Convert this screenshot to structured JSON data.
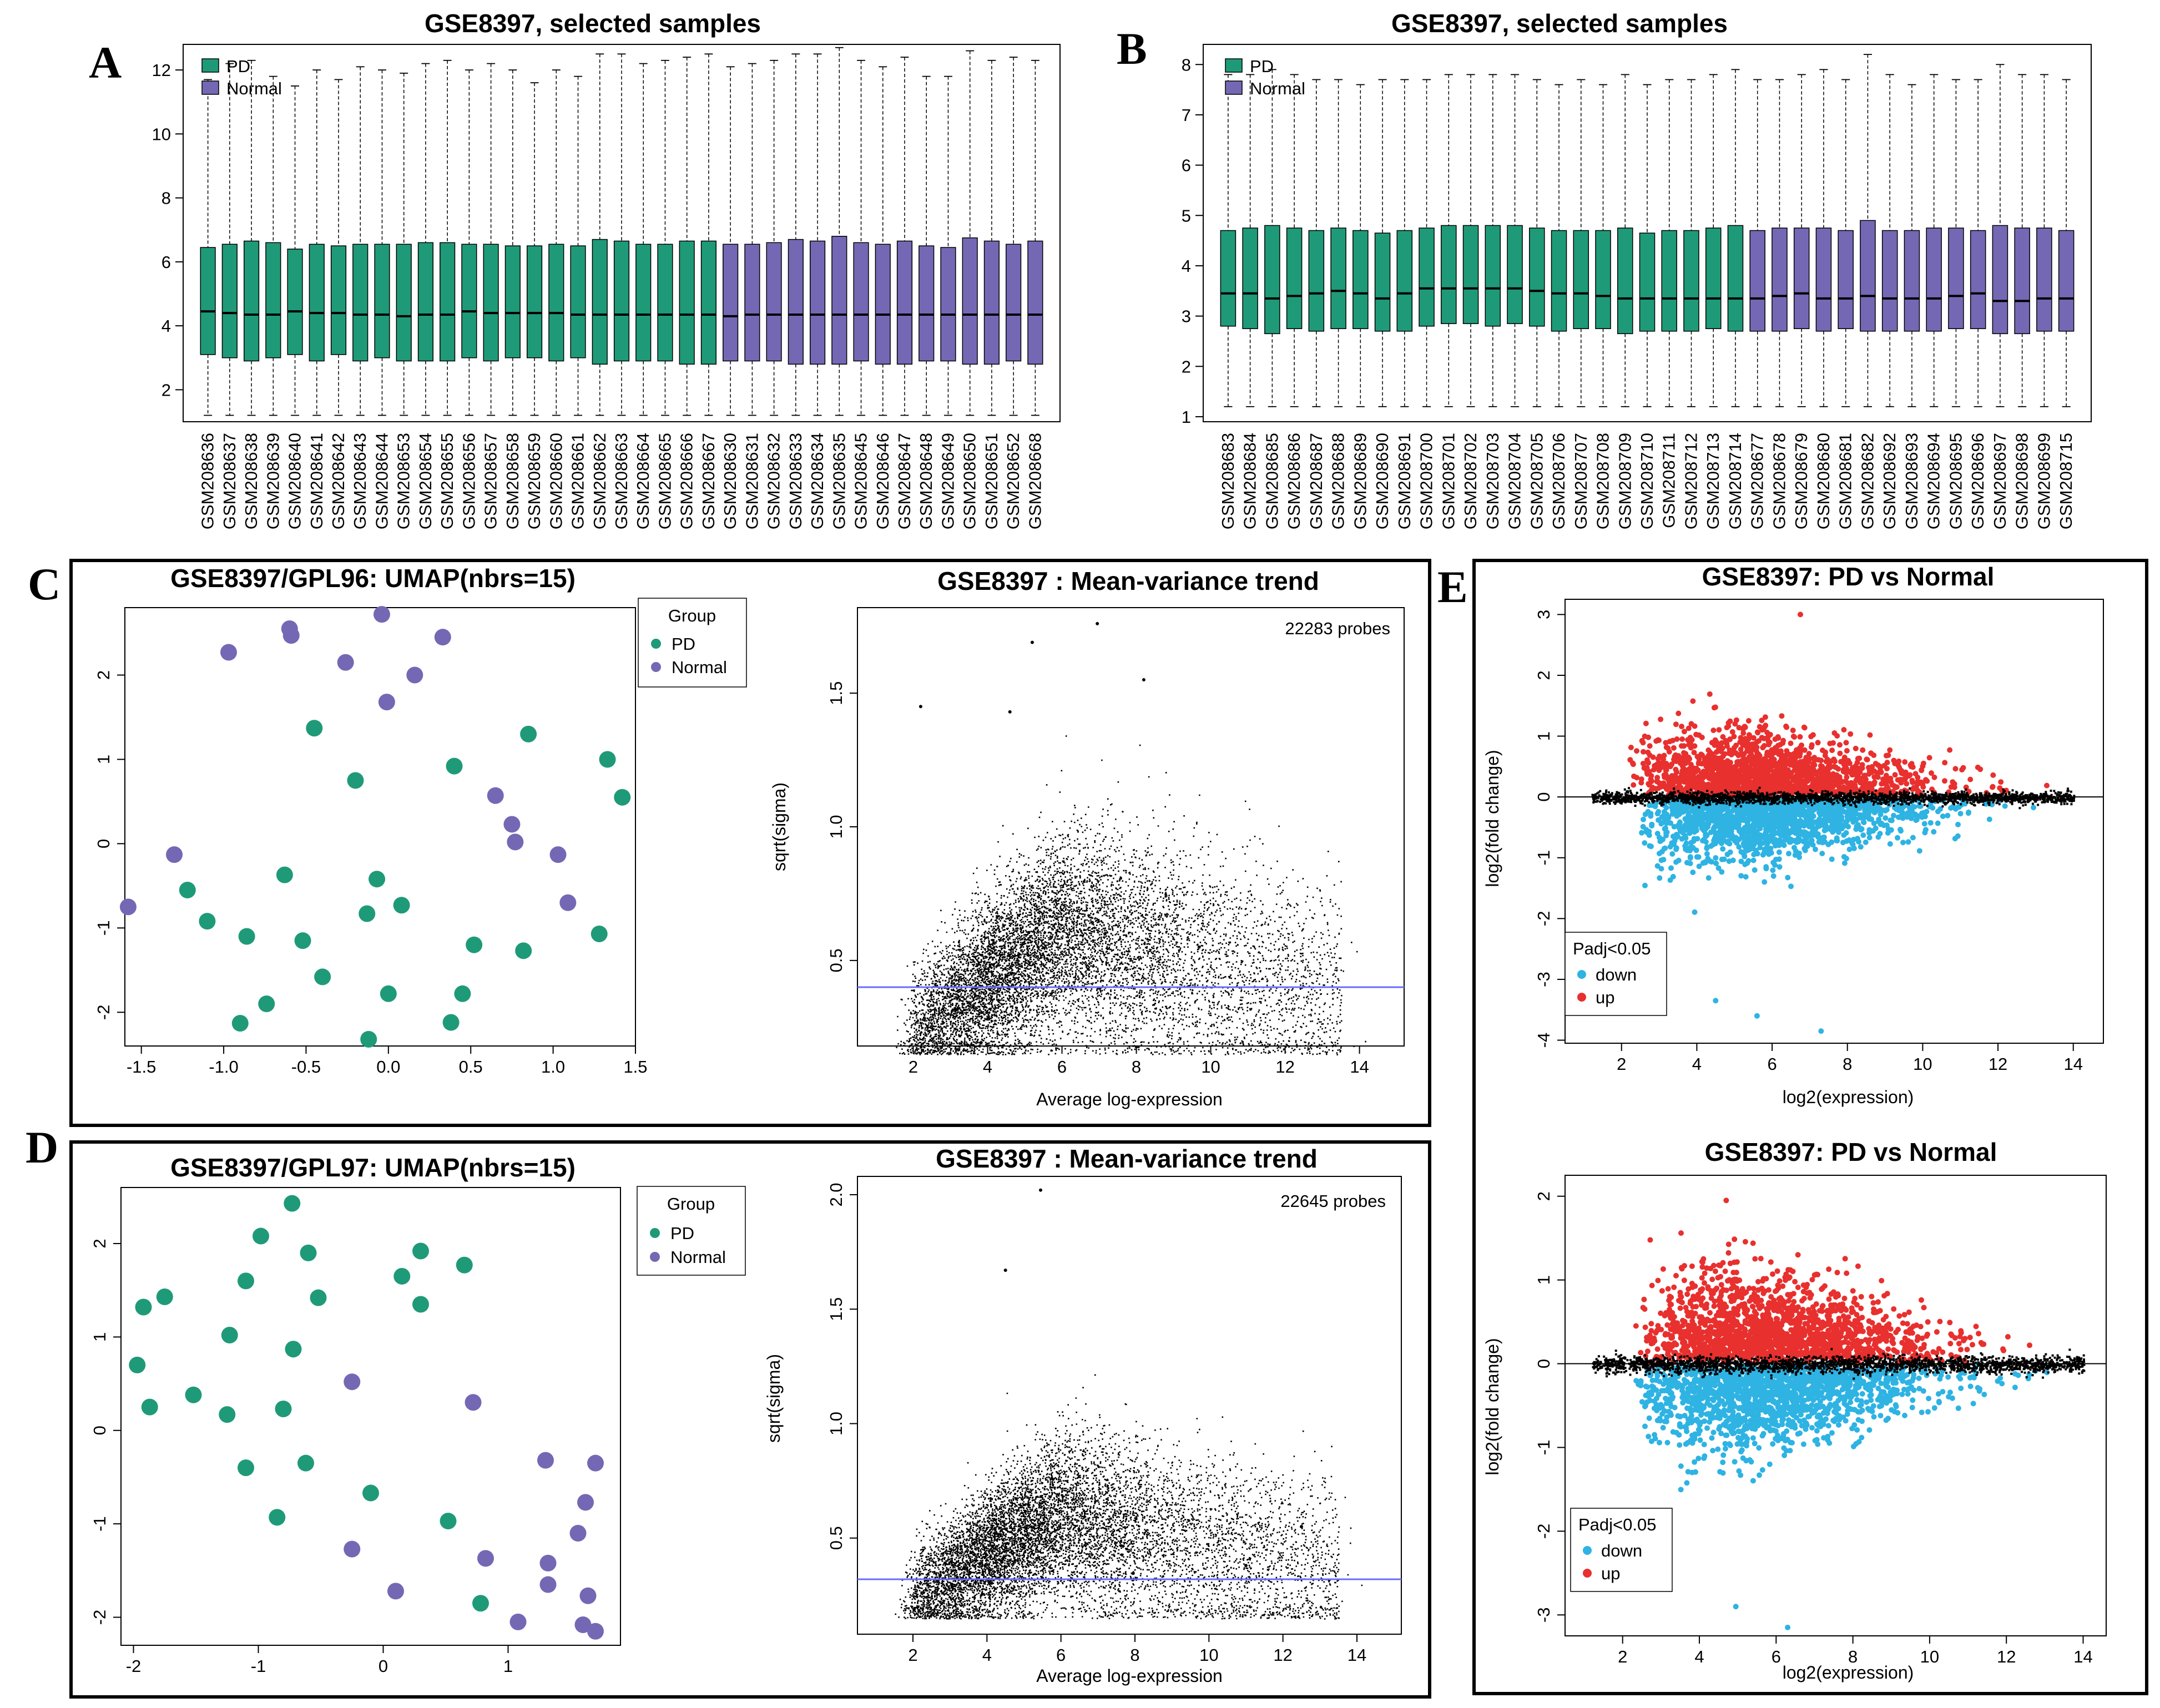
{
  "colors": {
    "pd": "#1f9a78",
    "normal": "#7468b5",
    "up": "#e8302e",
    "down": "#2eb3e3",
    "trend": "#6b6bff"
  },
  "panel_letters": [
    "A",
    "B",
    "C",
    "D",
    "E"
  ],
  "chart_data": [
    {
      "id": "A",
      "type": "box",
      "title": "GSE8397, selected samples",
      "legend": [
        "PD",
        "Normal"
      ],
      "ylim": [
        1,
        12.8
      ],
      "yticks": [
        2,
        4,
        6,
        8,
        10,
        12
      ],
      "samples": [
        "GSM208636",
        "GSM208637",
        "GSM208638",
        "GSM208639",
        "GSM208640",
        "GSM208641",
        "GSM208642",
        "GSM208643",
        "GSM208644",
        "GSM208653",
        "GSM208654",
        "GSM208655",
        "GSM208656",
        "GSM208657",
        "GSM208658",
        "GSM208659",
        "GSM208660",
        "GSM208661",
        "GSM208662",
        "GSM208663",
        "GSM208664",
        "GSM208665",
        "GSM208666",
        "GSM208667",
        "GSM208630",
        "GSM208631",
        "GSM208632",
        "GSM208633",
        "GSM208634",
        "GSM208635",
        "GSM208645",
        "GSM208646",
        "GSM208647",
        "GSM208648",
        "GSM208649",
        "GSM208650",
        "GSM208651",
        "GSM208652",
        "GSM208668"
      ],
      "groups": [
        "PD",
        "PD",
        "PD",
        "PD",
        "PD",
        "PD",
        "PD",
        "PD",
        "PD",
        "PD",
        "PD",
        "PD",
        "PD",
        "PD",
        "PD",
        "PD",
        "PD",
        "PD",
        "PD",
        "PD",
        "PD",
        "PD",
        "PD",
        "PD",
        "Normal",
        "Normal",
        "Normal",
        "Normal",
        "Normal",
        "Normal",
        "Normal",
        "Normal",
        "Normal",
        "Normal",
        "Normal",
        "Normal",
        "Normal",
        "Normal",
        "Normal"
      ],
      "q1": [
        3.1,
        3.0,
        2.9,
        3.0,
        3.1,
        2.9,
        3.1,
        2.9,
        3.0,
        2.9,
        2.9,
        2.9,
        3.0,
        2.9,
        3.0,
        3.0,
        2.9,
        3.0,
        2.8,
        2.9,
        2.9,
        2.9,
        2.8,
        2.8,
        2.9,
        2.9,
        2.9,
        2.8,
        2.8,
        2.8,
        2.9,
        2.8,
        2.8,
        2.9,
        2.9,
        2.8,
        2.8,
        2.9,
        2.8
      ],
      "median": [
        4.45,
        4.4,
        4.35,
        4.35,
        4.45,
        4.4,
        4.4,
        4.35,
        4.35,
        4.3,
        4.35,
        4.35,
        4.45,
        4.4,
        4.4,
        4.4,
        4.4,
        4.35,
        4.35,
        4.35,
        4.35,
        4.35,
        4.35,
        4.35,
        4.3,
        4.35,
        4.35,
        4.35,
        4.35,
        4.35,
        4.35,
        4.35,
        4.35,
        4.35,
        4.35,
        4.35,
        4.35,
        4.35,
        4.35
      ],
      "q3": [
        6.45,
        6.55,
        6.65,
        6.6,
        6.4,
        6.55,
        6.5,
        6.55,
        6.55,
        6.55,
        6.6,
        6.6,
        6.55,
        6.55,
        6.5,
        6.5,
        6.55,
        6.5,
        6.7,
        6.65,
        6.55,
        6.55,
        6.65,
        6.65,
        6.55,
        6.55,
        6.6,
        6.7,
        6.65,
        6.8,
        6.6,
        6.55,
        6.65,
        6.5,
        6.45,
        6.75,
        6.65,
        6.55,
        6.65
      ],
      "lower": [
        1.2,
        1.2,
        1.2,
        1.2,
        1.2,
        1.2,
        1.2,
        1.2,
        1.2,
        1.2,
        1.2,
        1.2,
        1.2,
        1.2,
        1.2,
        1.2,
        1.2,
        1.2,
        1.2,
        1.2,
        1.2,
        1.2,
        1.2,
        1.2,
        1.2,
        1.2,
        1.2,
        1.2,
        1.2,
        1.2,
        1.2,
        1.2,
        1.2,
        1.2,
        1.2,
        1.2,
        1.2,
        1.2,
        1.2
      ],
      "upper": [
        11.7,
        12.2,
        12.3,
        11.8,
        11.5,
        12.0,
        11.7,
        12.1,
        12.0,
        11.9,
        12.2,
        12.3,
        12.0,
        12.2,
        12.0,
        11.6,
        12.0,
        11.8,
        12.5,
        12.5,
        12.2,
        12.3,
        12.4,
        12.5,
        12.1,
        12.2,
        12.3,
        12.5,
        12.5,
        12.7,
        12.3,
        12.1,
        12.4,
        11.8,
        11.8,
        12.6,
        12.3,
        12.4,
        12.3
      ]
    },
    {
      "id": "B",
      "type": "box",
      "title": "GSE8397, selected samples",
      "legend": [
        "PD",
        "Normal"
      ],
      "ylim": [
        0.9,
        8.4
      ],
      "yticks": [
        1,
        2,
        3,
        4,
        5,
        6,
        7,
        8
      ],
      "samples": [
        "GSM208683",
        "GSM208684",
        "GSM208685",
        "GSM208686",
        "GSM208687",
        "GSM208688",
        "GSM208689",
        "GSM208690",
        "GSM208691",
        "GSM208700",
        "GSM208701",
        "GSM208702",
        "GSM208703",
        "GSM208704",
        "GSM208705",
        "GSM208706",
        "GSM208707",
        "GSM208708",
        "GSM208709",
        "GSM208710",
        "GSM208711",
        "GSM208712",
        "GSM208713",
        "GSM208714",
        "GSM208677",
        "GSM208678",
        "GSM208679",
        "GSM208680",
        "GSM208681",
        "GSM208682",
        "GSM208692",
        "GSM208693",
        "GSM208694",
        "GSM208695",
        "GSM208696",
        "GSM208697",
        "GSM208698",
        "GSM208699",
        "GSM208715"
      ],
      "groups": [
        "PD",
        "PD",
        "PD",
        "PD",
        "PD",
        "PD",
        "PD",
        "PD",
        "PD",
        "PD",
        "PD",
        "PD",
        "PD",
        "PD",
        "PD",
        "PD",
        "PD",
        "PD",
        "PD",
        "PD",
        "PD",
        "PD",
        "PD",
        "PD",
        "Normal",
        "Normal",
        "Normal",
        "Normal",
        "Normal",
        "Normal",
        "Normal",
        "Normal",
        "Normal",
        "Normal",
        "Normal",
        "Normal",
        "Normal",
        "Normal",
        "Normal"
      ],
      "q1": [
        2.8,
        2.75,
        2.65,
        2.75,
        2.7,
        2.75,
        2.75,
        2.7,
        2.7,
        2.8,
        2.85,
        2.85,
        2.8,
        2.85,
        2.8,
        2.7,
        2.75,
        2.75,
        2.65,
        2.7,
        2.7,
        2.7,
        2.75,
        2.7,
        2.7,
        2.7,
        2.75,
        2.7,
        2.75,
        2.7,
        2.7,
        2.7,
        2.7,
        2.75,
        2.75,
        2.65,
        2.65,
        2.7,
        2.7
      ],
      "median": [
        3.45,
        3.45,
        3.35,
        3.4,
        3.45,
        3.5,
        3.45,
        3.35,
        3.45,
        3.55,
        3.55,
        3.55,
        3.55,
        3.55,
        3.5,
        3.45,
        3.45,
        3.4,
        3.35,
        3.35,
        3.35,
        3.35,
        3.35,
        3.35,
        3.35,
        3.4,
        3.45,
        3.35,
        3.35,
        3.4,
        3.35,
        3.35,
        3.35,
        3.4,
        3.45,
        3.3,
        3.3,
        3.35,
        3.35
      ],
      "q3": [
        4.7,
        4.75,
        4.8,
        4.75,
        4.7,
        4.75,
        4.7,
        4.65,
        4.7,
        4.75,
        4.8,
        4.8,
        4.8,
        4.8,
        4.75,
        4.7,
        4.7,
        4.7,
        4.75,
        4.65,
        4.7,
        4.7,
        4.75,
        4.8,
        4.7,
        4.75,
        4.75,
        4.75,
        4.7,
        4.9,
        4.7,
        4.7,
        4.75,
        4.75,
        4.7,
        4.8,
        4.75,
        4.75,
        4.7
      ],
      "lower": [
        1.2,
        1.2,
        1.2,
        1.2,
        1.2,
        1.2,
        1.2,
        1.2,
        1.2,
        1.2,
        1.2,
        1.2,
        1.2,
        1.2,
        1.2,
        1.2,
        1.2,
        1.2,
        1.2,
        1.2,
        1.2,
        1.2,
        1.2,
        1.2,
        1.2,
        1.2,
        1.2,
        1.2,
        1.2,
        1.2,
        1.2,
        1.2,
        1.2,
        1.2,
        1.2,
        1.2,
        1.2,
        1.2,
        1.2
      ],
      "upper": [
        7.8,
        7.8,
        7.9,
        7.8,
        7.7,
        7.7,
        7.6,
        7.7,
        7.7,
        7.7,
        7.8,
        7.8,
        7.8,
        7.8,
        7.7,
        7.6,
        7.7,
        7.6,
        7.8,
        7.6,
        7.7,
        7.7,
        7.8,
        7.9,
        7.7,
        7.7,
        7.8,
        7.9,
        7.7,
        8.2,
        7.8,
        7.6,
        7.8,
        7.7,
        7.7,
        8.0,
        7.8,
        7.8,
        7.7
      ]
    },
    {
      "id": "C1",
      "type": "scatter",
      "title": "GSE8397/GPL96: UMAP(nbrs=15)",
      "legend_title": "Group",
      "legend": [
        "PD",
        "Normal"
      ],
      "xlim": [
        -1.6,
        1.5
      ],
      "ylim": [
        -2.4,
        2.8
      ],
      "xticks": [
        -1.5,
        -1.0,
        -0.5,
        0.0,
        0.5,
        1.0,
        1.5
      ],
      "xticklabels": [
        "-1.5",
        "-1.0",
        "-0.5",
        "0.0",
        "0.5",
        "1.0",
        "1.5"
      ],
      "yticks": [
        -2,
        -1,
        0,
        1,
        2
      ],
      "pd": [
        [
          -0.45,
          1.37
        ],
        [
          0.85,
          1.3
        ],
        [
          1.33,
          1.0
        ],
        [
          1.42,
          0.55
        ],
        [
          -0.2,
          0.75
        ],
        [
          0.4,
          0.92
        ],
        [
          -1.22,
          -0.55
        ],
        [
          -1.1,
          -0.92
        ],
        [
          -0.63,
          -0.37
        ],
        [
          -0.86,
          -1.1
        ],
        [
          -0.52,
          -1.15
        ],
        [
          -0.4,
          -1.58
        ],
        [
          -0.07,
          -0.42
        ],
        [
          -0.13,
          -0.83
        ],
        [
          0.08,
          -0.73
        ],
        [
          0.52,
          -1.2
        ],
        [
          0.82,
          -1.27
        ],
        [
          1.28,
          -1.07
        ],
        [
          -0.74,
          -1.9
        ],
        [
          -0.9,
          -2.13
        ],
        [
          0.0,
          -1.78
        ],
        [
          0.45,
          -1.78
        ],
        [
          0.38,
          -2.12
        ],
        [
          -0.12,
          -2.32
        ]
      ],
      "normal": [
        [
          -0.97,
          2.27
        ],
        [
          -0.6,
          2.55
        ],
        [
          -0.59,
          2.47
        ],
        [
          -0.26,
          2.15
        ],
        [
          -0.04,
          2.72
        ],
        [
          0.33,
          2.45
        ],
        [
          0.16,
          2.0
        ],
        [
          -0.01,
          1.68
        ],
        [
          0.65,
          0.57
        ],
        [
          0.75,
          0.23
        ],
        [
          0.77,
          0.02
        ],
        [
          1.03,
          -0.13
        ],
        [
          1.09,
          -0.7
        ],
        [
          -1.3,
          -0.13
        ],
        [
          -1.58,
          -0.75
        ]
      ]
    },
    {
      "id": "C2",
      "type": "scatter",
      "title": "GSE8397 : Mean-variance trend",
      "annotation": "22283 probes",
      "xlabel": "Average log-expression",
      "ylabel": "sqrt(sigma)",
      "xlim": [
        0.5,
        15.2
      ],
      "ylim": [
        0.18,
        1.82
      ],
      "xticks": [
        2,
        4,
        6,
        8,
        10,
        12,
        14
      ],
      "yticks": [
        0.5,
        1.0,
        1.5
      ],
      "yticklabels": [
        "0.5",
        "1.0",
        "1.5"
      ],
      "trend_y": 0.4,
      "outliers": [
        [
          6.95,
          1.76
        ],
        [
          5.2,
          1.69
        ],
        [
          8.2,
          1.55
        ],
        [
          4.6,
          1.43
        ],
        [
          2.2,
          1.45
        ]
      ]
    },
    {
      "id": "D1",
      "type": "scatter",
      "title": "GSE8397/GPL97: UMAP(nbrs=15)",
      "legend_title": "Group",
      "legend": [
        "PD",
        "Normal"
      ],
      "xlim": [
        -2.1,
        1.9
      ],
      "ylim": [
        -2.3,
        2.6
      ],
      "xticks": [
        -2,
        -1,
        0,
        1
      ],
      "yticks": [
        -2,
        -1,
        0,
        1,
        2
      ],
      "pd": [
        [
          -0.73,
          2.43
        ],
        [
          -0.98,
          2.08
        ],
        [
          -0.6,
          1.9
        ],
        [
          -1.1,
          1.6
        ],
        [
          -1.92,
          1.32
        ],
        [
          -1.75,
          1.43
        ],
        [
          -0.52,
          1.42
        ],
        [
          0.3,
          1.92
        ],
        [
          0.15,
          1.65
        ],
        [
          0.3,
          1.35
        ],
        [
          0.65,
          1.77
        ],
        [
          -1.23,
          1.02
        ],
        [
          -0.72,
          0.87
        ],
        [
          -1.97,
          0.7
        ],
        [
          -1.52,
          0.38
        ],
        [
          -1.87,
          0.25
        ],
        [
          -1.25,
          0.17
        ],
        [
          -0.8,
          0.23
        ],
        [
          -1.1,
          -0.4
        ],
        [
          -0.62,
          -0.35
        ],
        [
          -0.1,
          -0.67
        ],
        [
          -0.85,
          -0.93
        ],
        [
          0.52,
          -0.97
        ],
        [
          0.78,
          -1.85
        ]
      ],
      "normal": [
        [
          -0.25,
          0.52
        ],
        [
          0.72,
          0.3
        ],
        [
          1.3,
          -0.32
        ],
        [
          1.7,
          -0.35
        ],
        [
          1.62,
          -0.77
        ],
        [
          1.56,
          -1.1
        ],
        [
          0.82,
          -1.37
        ],
        [
          1.32,
          -1.42
        ],
        [
          1.32,
          -1.65
        ],
        [
          1.64,
          -1.77
        ],
        [
          -0.25,
          -1.27
        ],
        [
          0.1,
          -1.72
        ],
        [
          1.08,
          -2.05
        ],
        [
          1.6,
          -2.08
        ],
        [
          1.7,
          -2.15
        ]
      ]
    },
    {
      "id": "D2",
      "type": "scatter",
      "title": "GSE8397 : Mean-variance trend",
      "annotation": "22645 probes",
      "xlabel": "Average log-expression",
      "ylabel": "sqrt(sigma)",
      "xlim": [
        0.5,
        15.2
      ],
      "ylim": [
        0.08,
        2.08
      ],
      "xticks": [
        2,
        4,
        6,
        8,
        10,
        12,
        14
      ],
      "yticks": [
        0.5,
        1.0,
        1.5,
        2.0
      ],
      "yticklabels": [
        "0.5",
        "1.0",
        "1.5",
        "2.0"
      ],
      "trend_y": 0.32,
      "outliers": [
        [
          5.45,
          2.02
        ],
        [
          4.5,
          1.67
        ],
        [
          11.0,
          0.38
        ],
        [
          12.5,
          0.55
        ]
      ]
    },
    {
      "id": "E1",
      "type": "scatter",
      "title": "GSE8397: PD vs Normal",
      "xlabel": "log2(expression)",
      "ylabel": "log2(fold change)",
      "legend_title": "Padj<0.05",
      "legend": [
        "down",
        "up"
      ],
      "xlim": [
        0.5,
        14.8
      ],
      "ylim": [
        -4.05,
        3.25
      ],
      "xticks": [
        2,
        4,
        6,
        8,
        10,
        12,
        14
      ],
      "yticks": [
        -4,
        -3,
        -2,
        -1,
        0,
        1,
        2,
        3
      ],
      "extremes": [
        [
          6.75,
          3.0
        ],
        [
          7.3,
          -3.85
        ],
        [
          5.6,
          -3.6
        ],
        [
          4.5,
          -3.35
        ]
      ]
    },
    {
      "id": "E2",
      "type": "scatter",
      "title": "GSE8397: PD vs Normal",
      "xlabel": "log2(expression)",
      "ylabel": "log2(fold change)",
      "legend_title": "Padj<0.05",
      "legend": [
        "down",
        "up"
      ],
      "xlim": [
        0.5,
        14.6
      ],
      "ylim": [
        -3.25,
        2.25
      ],
      "xticks": [
        2,
        4,
        6,
        8,
        10,
        12,
        14
      ],
      "yticks": [
        -3,
        -2,
        -1,
        0,
        1,
        2
      ],
      "extremes": [
        [
          4.7,
          1.95
        ],
        [
          6.3,
          -3.15
        ],
        [
          4.95,
          -2.9
        ]
      ]
    }
  ]
}
